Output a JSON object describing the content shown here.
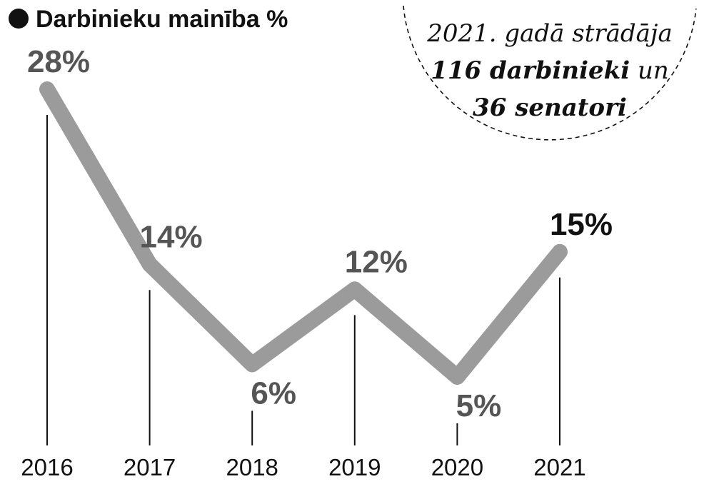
{
  "title": "Darbinieku mainība %",
  "note": {
    "line1": "2021. gadā strādāja",
    "line2_bold": "116 darbinieki",
    "line2_rest": " un",
    "line3_bold": "36 senatori"
  },
  "colors": {
    "line": "#9b9b9b",
    "label_default": "#555555",
    "label_highlight": "#111111",
    "ink": "#111111"
  },
  "chart_data": {
    "type": "line",
    "title": "Darbinieku mainība %",
    "categories": [
      "2016",
      "2017",
      "2018",
      "2019",
      "2020",
      "2021"
    ],
    "values": [
      28,
      14,
      6,
      12,
      5,
      15
    ],
    "data_labels": [
      "28%",
      "14%",
      "6%",
      "12%",
      "5%",
      "15%"
    ],
    "label_position": [
      "above",
      "above",
      "below",
      "above",
      "below",
      "above"
    ],
    "highlight_index": 5,
    "ylim": [
      0,
      30
    ],
    "grid": false,
    "legend": "none"
  }
}
